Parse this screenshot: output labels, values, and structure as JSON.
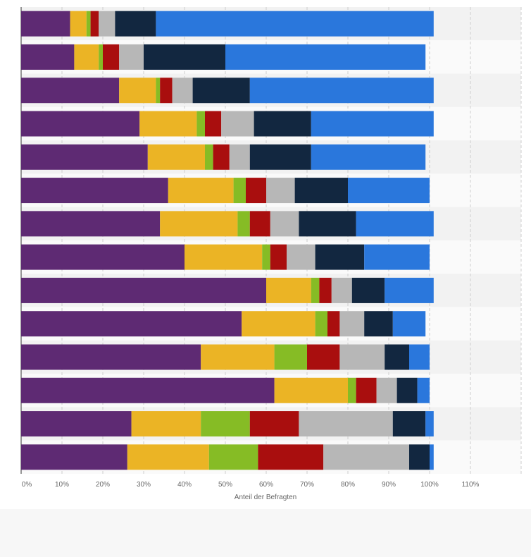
{
  "chart_data": {
    "type": "bar",
    "orientation": "horizontal",
    "stacked": true,
    "title": "",
    "xlabel": "Anteil der Befragten",
    "ylabel": "",
    "xlim": [
      0,
      120
    ],
    "x_ticks": [
      {
        "value": 0,
        "label": "0%"
      },
      {
        "value": 10,
        "label": "10%"
      },
      {
        "value": 20,
        "label": "20%"
      },
      {
        "value": 30,
        "label": "30%"
      },
      {
        "value": 40,
        "label": "40%"
      },
      {
        "value": 50,
        "label": "50%"
      },
      {
        "value": 60,
        "label": "60%"
      },
      {
        "value": 70,
        "label": "70%"
      },
      {
        "value": 80,
        "label": "80%"
      },
      {
        "value": 90,
        "label": "90%"
      },
      {
        "value": 100,
        "label": "100%"
      },
      {
        "value": 110,
        "label": "110%"
      }
    ],
    "grid": true,
    "legend": "none",
    "category_count": 14,
    "series": [
      {
        "color": "#5e2a73",
        "values": [
          12,
          13,
          24,
          29,
          31,
          36,
          34,
          40,
          60,
          54,
          44,
          62,
          27,
          26
        ]
      },
      {
        "color": "#ebb425",
        "values": [
          4,
          6,
          9,
          14,
          14,
          16,
          19,
          19,
          11,
          18,
          18,
          18,
          17,
          20
        ]
      },
      {
        "color": "#86bc25",
        "values": [
          1,
          1,
          1,
          2,
          2,
          3,
          3,
          2,
          2,
          3,
          8,
          2,
          12,
          12
        ]
      },
      {
        "color": "#a90e0e",
        "values": [
          2,
          4,
          3,
          4,
          4,
          5,
          5,
          4,
          3,
          3,
          8,
          5,
          12,
          16
        ]
      },
      {
        "color": "#b7b7b7",
        "values": [
          4,
          6,
          5,
          8,
          5,
          7,
          7,
          7,
          5,
          6,
          11,
          5,
          23,
          21
        ]
      },
      {
        "color": "#122740",
        "values": [
          10,
          20,
          14,
          14,
          15,
          13,
          14,
          12,
          8,
          7,
          6,
          5,
          8,
          5
        ]
      },
      {
        "color": "#2a77dc",
        "values": [
          68,
          49,
          45,
          30,
          28,
          20,
          19,
          16,
          12,
          8,
          5,
          3,
          2,
          1
        ]
      }
    ]
  }
}
